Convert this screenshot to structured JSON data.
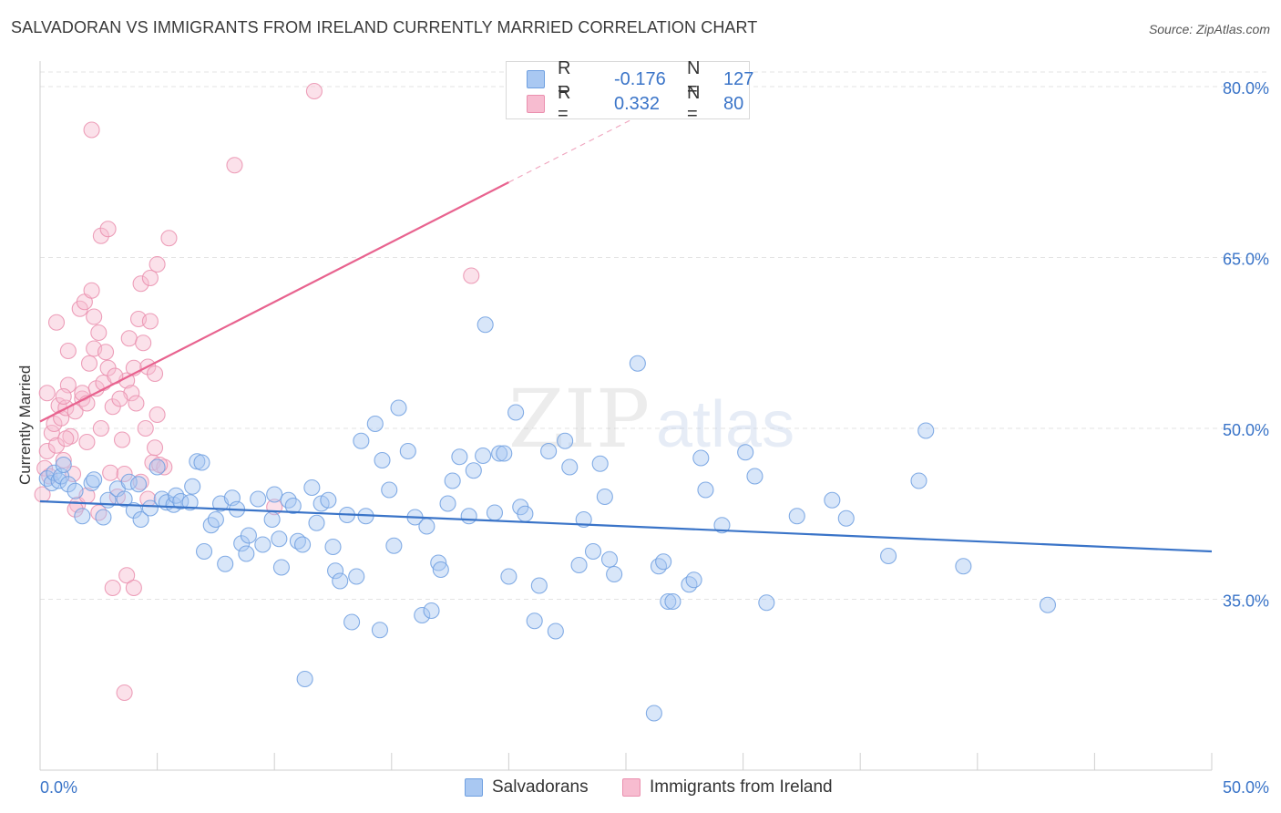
{
  "header": {
    "title": "SALVADORAN VS IMMIGRANTS FROM IRELAND CURRENTLY MARRIED CORRELATION CHART",
    "source": "Source: ZipAtlas.com"
  },
  "legend_box": {
    "rows": [
      {
        "r_label": "R =",
        "r_value": "-0.176",
        "n_label": "N =",
        "n_value": "127",
        "color": "#a9c8f2",
        "border": "#6e9fe0"
      },
      {
        "r_label": "R =",
        "r_value": "0.332",
        "n_label": "N =",
        "n_value": "80",
        "color": "#f7bcd0",
        "border": "#ea8fae"
      }
    ]
  },
  "bottom_legend": {
    "items": [
      {
        "label": "Salvadorans",
        "color": "#a9c8f2",
        "border": "#6e9fe0"
      },
      {
        "label": "Immigrants from Ireland",
        "color": "#f7bcd0",
        "border": "#ea8fae"
      }
    ]
  },
  "watermark": {
    "zip": "ZIP",
    "atlas": "atlas"
  },
  "colors": {
    "blue": "#3a74c8",
    "blue_fill": "#a9c8f2",
    "pink": "#e8638f",
    "pink_fill": "#f7bcd0",
    "grid": "#e3e3e3",
    "tick_text": "#3a74c8"
  },
  "chart_data": {
    "type": "scatter",
    "title": "SALVADORAN VS IMMIGRANTS FROM IRELAND CURRENTLY MARRIED CORRELATION CHART",
    "xlabel": "",
    "ylabel": "Currently Married",
    "xlim": [
      0,
      50
    ],
    "ylim": [
      20,
      82
    ],
    "x_tick_labels": [
      "0.0%",
      "50.0%"
    ],
    "y_ticks": [
      35,
      50,
      65,
      80
    ],
    "y_tick_labels": [
      "35.0%",
      "50.0%",
      "65.0%",
      "80.0%"
    ],
    "grid": true,
    "legend_position": "top-center",
    "series": [
      {
        "name": "Salvadorans",
        "R": -0.176,
        "N": 127,
        "trend": {
          "x0": 0,
          "y0": 43.6,
          "x1": 50,
          "y1": 39.2
        },
        "points": [
          [
            0.3,
            45.6
          ],
          [
            0.5,
            45.2
          ],
          [
            0.6,
            46.1
          ],
          [
            0.8,
            45.4
          ],
          [
            0.9,
            45.8
          ],
          [
            1.0,
            46.8
          ],
          [
            1.2,
            45.1
          ],
          [
            1.5,
            44.5
          ],
          [
            1.8,
            42.3
          ],
          [
            2.2,
            45.2
          ],
          [
            2.3,
            45.5
          ],
          [
            2.7,
            42.2
          ],
          [
            2.9,
            43.7
          ],
          [
            3.3,
            44.7
          ],
          [
            3.6,
            43.8
          ],
          [
            3.8,
            45.3
          ],
          [
            4.0,
            42.8
          ],
          [
            4.2,
            45.1
          ],
          [
            4.3,
            42.0
          ],
          [
            4.7,
            43.0
          ],
          [
            5.0,
            46.6
          ],
          [
            5.2,
            43.8
          ],
          [
            5.4,
            43.5
          ],
          [
            5.7,
            43.3
          ],
          [
            5.8,
            44.1
          ],
          [
            6.0,
            43.6
          ],
          [
            6.4,
            43.5
          ],
          [
            6.5,
            44.9
          ],
          [
            6.7,
            47.1
          ],
          [
            6.9,
            47.0
          ],
          [
            7.0,
            39.2
          ],
          [
            7.3,
            41.5
          ],
          [
            7.5,
            42.0
          ],
          [
            7.7,
            43.4
          ],
          [
            7.9,
            38.1
          ],
          [
            8.2,
            43.9
          ],
          [
            8.4,
            42.9
          ],
          [
            8.6,
            39.9
          ],
          [
            8.8,
            39.0
          ],
          [
            8.9,
            40.6
          ],
          [
            9.3,
            43.8
          ],
          [
            9.5,
            39.8
          ],
          [
            9.9,
            42.0
          ],
          [
            10.0,
            44.2
          ],
          [
            10.2,
            40.3
          ],
          [
            10.3,
            37.8
          ],
          [
            10.6,
            43.7
          ],
          [
            10.8,
            43.2
          ],
          [
            11.0,
            40.1
          ],
          [
            11.2,
            39.8
          ],
          [
            11.3,
            28.0
          ],
          [
            11.6,
            44.8
          ],
          [
            11.8,
            41.7
          ],
          [
            12.0,
            43.4
          ],
          [
            12.3,
            43.7
          ],
          [
            12.5,
            39.6
          ],
          [
            12.6,
            37.5
          ],
          [
            12.8,
            36.6
          ],
          [
            13.1,
            42.4
          ],
          [
            13.3,
            33.0
          ],
          [
            13.5,
            37.0
          ],
          [
            13.7,
            48.9
          ],
          [
            13.9,
            42.3
          ],
          [
            14.3,
            50.4
          ],
          [
            14.5,
            32.3
          ],
          [
            14.6,
            47.2
          ],
          [
            14.9,
            44.6
          ],
          [
            15.1,
            39.7
          ],
          [
            15.3,
            51.8
          ],
          [
            15.7,
            48.0
          ],
          [
            16.0,
            42.2
          ],
          [
            16.3,
            33.6
          ],
          [
            16.5,
            41.4
          ],
          [
            16.7,
            34.0
          ],
          [
            17.0,
            38.2
          ],
          [
            17.1,
            37.6
          ],
          [
            17.4,
            43.4
          ],
          [
            17.6,
            45.4
          ],
          [
            17.9,
            47.5
          ],
          [
            18.3,
            42.3
          ],
          [
            18.5,
            46.3
          ],
          [
            18.9,
            47.6
          ],
          [
            19.0,
            59.1
          ],
          [
            19.4,
            42.6
          ],
          [
            19.6,
            47.8
          ],
          [
            19.8,
            47.8
          ],
          [
            20.0,
            37.0
          ],
          [
            20.3,
            51.4
          ],
          [
            20.5,
            43.1
          ],
          [
            20.7,
            42.5
          ],
          [
            21.1,
            33.1
          ],
          [
            21.3,
            36.2
          ],
          [
            21.7,
            48.0
          ],
          [
            22.0,
            32.2
          ],
          [
            22.4,
            48.9
          ],
          [
            22.6,
            46.6
          ],
          [
            23.0,
            38.0
          ],
          [
            23.2,
            42.0
          ],
          [
            23.6,
            39.2
          ],
          [
            23.9,
            46.9
          ],
          [
            24.1,
            44.0
          ],
          [
            24.3,
            38.5
          ],
          [
            24.5,
            37.2
          ],
          [
            25.5,
            55.7
          ],
          [
            26.2,
            25.0
          ],
          [
            26.4,
            37.9
          ],
          [
            26.6,
            38.3
          ],
          [
            26.8,
            34.8
          ],
          [
            27.0,
            34.8
          ],
          [
            27.7,
            36.3
          ],
          [
            27.9,
            36.7
          ],
          [
            28.2,
            47.4
          ],
          [
            28.4,
            44.6
          ],
          [
            29.1,
            41.5
          ],
          [
            30.1,
            47.9
          ],
          [
            30.5,
            45.8
          ],
          [
            31.0,
            34.7
          ],
          [
            32.3,
            42.3
          ],
          [
            33.8,
            43.7
          ],
          [
            34.4,
            42.1
          ],
          [
            36.2,
            38.8
          ],
          [
            37.5,
            45.4
          ],
          [
            37.8,
            49.8
          ],
          [
            39.4,
            37.9
          ],
          [
            43.0,
            34.5
          ]
        ]
      },
      {
        "name": "Immigrants from Ireland",
        "R": 0.332,
        "N": 80,
        "trend": {
          "x0": 0,
          "y0": 50.6,
          "x1": 20,
          "y1": 71.6
        },
        "points": [
          [
            0.1,
            44.2
          ],
          [
            0.2,
            46.5
          ],
          [
            0.3,
            48.0
          ],
          [
            0.4,
            45.8
          ],
          [
            0.5,
            49.6
          ],
          [
            0.6,
            50.4
          ],
          [
            0.7,
            48.5
          ],
          [
            0.8,
            52.0
          ],
          [
            0.9,
            50.9
          ],
          [
            1.0,
            47.2
          ],
          [
            1.1,
            51.8
          ],
          [
            1.2,
            53.8
          ],
          [
            1.3,
            49.3
          ],
          [
            1.4,
            46.0
          ],
          [
            1.5,
            51.5
          ],
          [
            1.6,
            43.3
          ],
          [
            1.7,
            60.5
          ],
          [
            1.8,
            52.6
          ],
          [
            1.9,
            61.1
          ],
          [
            2.0,
            44.1
          ],
          [
            2.1,
            55.7
          ],
          [
            2.2,
            62.1
          ],
          [
            2.3,
            57.0
          ],
          [
            2.4,
            53.5
          ],
          [
            2.5,
            42.6
          ],
          [
            2.6,
            50.0
          ],
          [
            2.7,
            54.0
          ],
          [
            2.8,
            56.7
          ],
          [
            2.9,
            55.3
          ],
          [
            3.0,
            46.1
          ],
          [
            3.1,
            36.0
          ],
          [
            3.3,
            44.0
          ],
          [
            3.5,
            49.0
          ],
          [
            3.6,
            46.0
          ],
          [
            3.7,
            54.2
          ],
          [
            3.8,
            57.9
          ],
          [
            3.9,
            53.1
          ],
          [
            4.0,
            55.3
          ],
          [
            4.1,
            52.2
          ],
          [
            4.2,
            59.6
          ],
          [
            4.3,
            45.3
          ],
          [
            4.4,
            57.5
          ],
          [
            4.5,
            50.0
          ],
          [
            4.6,
            55.4
          ],
          [
            4.7,
            59.4
          ],
          [
            4.8,
            47.0
          ],
          [
            4.9,
            54.8
          ],
          [
            5.0,
            51.2
          ],
          [
            1.0,
            52.8
          ],
          [
            1.5,
            42.9
          ],
          [
            1.8,
            53.1
          ],
          [
            2.0,
            48.8
          ],
          [
            2.3,
            59.8
          ],
          [
            2.6,
            66.9
          ],
          [
            2.9,
            67.5
          ],
          [
            3.1,
            51.9
          ],
          [
            3.4,
            52.6
          ],
          [
            3.7,
            37.1
          ],
          [
            4.0,
            36.0
          ],
          [
            4.3,
            62.7
          ],
          [
            4.7,
            63.2
          ],
          [
            5.0,
            64.4
          ],
          [
            5.5,
            66.7
          ],
          [
            8.3,
            73.1
          ],
          [
            10.0,
            43.1
          ],
          [
            11.7,
            79.6
          ],
          [
            18.4,
            63.4
          ],
          [
            2.2,
            76.2
          ],
          [
            1.2,
            56.8
          ],
          [
            0.7,
            59.3
          ],
          [
            2.5,
            58.4
          ],
          [
            3.6,
            26.8
          ],
          [
            5.3,
            46.6
          ],
          [
            4.6,
            43.8
          ],
          [
            0.3,
            53.1
          ],
          [
            2.0,
            52.2
          ],
          [
            4.9,
            48.3
          ],
          [
            3.2,
            54.6
          ],
          [
            1.1,
            49.1
          ],
          [
            5.1,
            46.8
          ]
        ]
      }
    ]
  }
}
